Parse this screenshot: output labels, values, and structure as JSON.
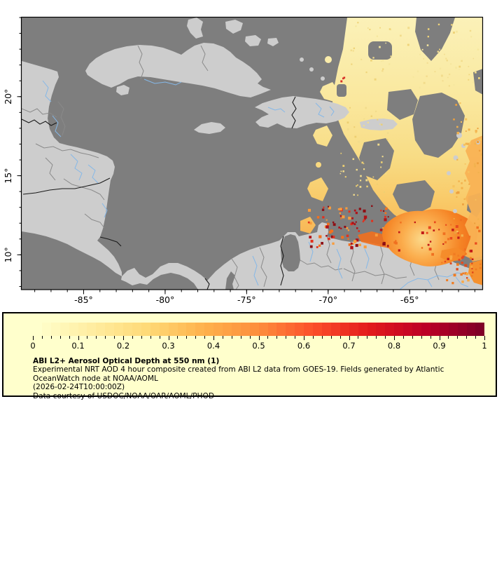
{
  "product": {
    "title": "ABI L2+ Aerosol Optical Depth at 550 nm (1)",
    "description_lines": [
      "Experimental NRT AOD 4 hour composite created from ABI L2 data from GOES-19. Fields generated by Atlantic",
      "OceanWatch node at NOAA/AOML",
      "(2026-02-24T10:00:00Z)",
      "Data courtesy of USDOC/NOAA/OAR/AOML/PHOD"
    ]
  },
  "colorbar": {
    "min": 0,
    "max": 1,
    "tick_labels": [
      "0",
      "0.1",
      "0.2",
      "0.3",
      "0.4",
      "0.5",
      "0.6",
      "0.7",
      "0.8",
      "0.9",
      "1"
    ],
    "minor_tick_step": 0.02,
    "colormap_name": "YlOrRd",
    "colormap_stops": [
      "#FFFFCC",
      "#FFEDA0",
      "#FED976",
      "#FEB24C",
      "#FD8D3C",
      "#FC4E2A",
      "#E31A1C",
      "#BD0026",
      "#800026"
    ]
  },
  "map": {
    "lon_range": [
      -88.8,
      -60.5
    ],
    "lat_range": [
      7.8,
      25.0
    ],
    "lon_ticks": [
      {
        "value": -85,
        "label": "-85°"
      },
      {
        "value": -80,
        "label": "-80°"
      },
      {
        "value": -75,
        "label": "-75°"
      },
      {
        "value": -70,
        "label": "-70°"
      },
      {
        "value": -65,
        "label": "-65°"
      }
    ],
    "lat_ticks": [
      {
        "value": 20,
        "label": "20°"
      },
      {
        "value": 15,
        "label": "15°"
      },
      {
        "value": 10,
        "label": "10°"
      }
    ]
  },
  "colors": {
    "sea": "#7E7E7E",
    "land": "#CDCDCD",
    "border_black": "#1A1A1A",
    "border_gray": "#8A8A8A",
    "river": "#85B8E8",
    "legend_bg": "#FFFFCC",
    "frame": "#000000"
  }
}
